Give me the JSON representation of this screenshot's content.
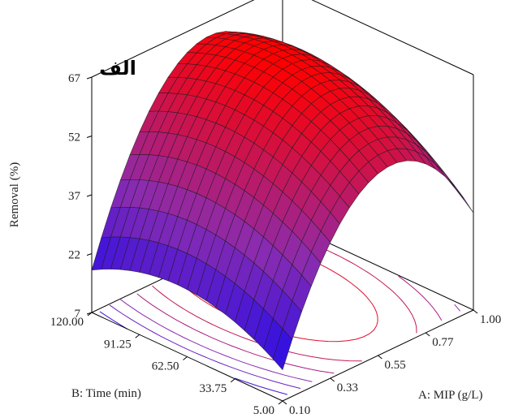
{
  "chart_data": {
    "type": "surface",
    "panel_label": "الف",
    "zlabel": "Removal (%)",
    "xlabel": "A: MIP (g/L)",
    "ylabel": "B: Time (min)",
    "z_ticks": [
      "7",
      "22",
      "37",
      "52",
      "67"
    ],
    "x_ticks": [
      "0.10",
      "0.33",
      "0.55",
      "0.77",
      "1.00"
    ],
    "y_ticks": [
      "5.00",
      "33.75",
      "62.50",
      "91.25",
      "120.00"
    ],
    "zlim": [
      7,
      67
    ],
    "xlim": [
      0.1,
      1.0
    ],
    "ylim": [
      5.0,
      120.0
    ],
    "surface": {
      "model": "quadratic",
      "peak": {
        "x": 0.64,
        "y": 80,
        "z": 67
      },
      "corners": [
        {
          "x": 0.1,
          "y": 5.0,
          "z": 8
        },
        {
          "x": 1.0,
          "y": 5.0,
          "z": 37
        },
        {
          "x": 1.0,
          "y": 120.0,
          "z": 38
        },
        {
          "x": 0.1,
          "y": 120.0,
          "z": 23
        }
      ],
      "contour_levels": [
        22,
        30,
        37,
        45,
        52,
        59
      ]
    },
    "colors": {
      "low": "#0000ff",
      "mid": "#8a2cb0",
      "high": "#ff0000",
      "mesh": "#1a1a1a",
      "box": "#000000"
    }
  }
}
